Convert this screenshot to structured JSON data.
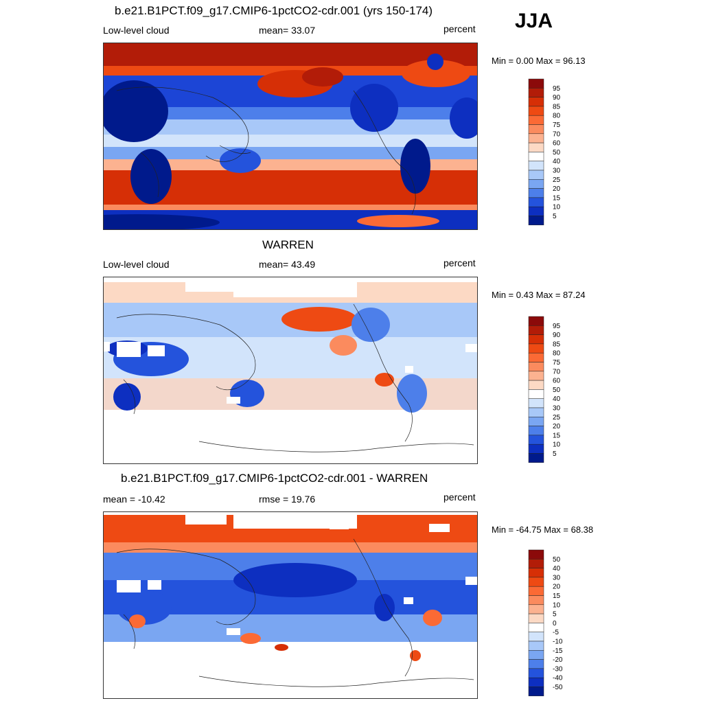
{
  "season": "JJA",
  "panels": [
    {
      "title": "b.e21.B1PCT.f09_g17.CMIP6-1pctCO2-cdr.001 (yrs 150-174)",
      "left_label": "Low-level cloud",
      "center_label": "mean=  33.07",
      "right_label": "percent",
      "minmax": "Min =   0.00 Max =  96.13",
      "colorbar_labels": [
        "95",
        "90",
        "85",
        "80",
        "75",
        "70",
        "60",
        "50",
        "40",
        "30",
        "25",
        "20",
        "15",
        "10",
        "5"
      ],
      "colorbar_colors": [
        "#8b0a0a",
        "#b21c08",
        "#d62f06",
        "#ee4a13",
        "#fb6a35",
        "#fb8b5e",
        "#fcb290",
        "#fcd9c4",
        "#ffffff",
        "#d2e4fb",
        "#a8c8f8",
        "#7aa6f2",
        "#4d7fea",
        "#2453dc",
        "#0d2fc0",
        "#001a8c"
      ]
    },
    {
      "title": "WARREN",
      "left_label": "Low-level cloud",
      "center_label": "mean=  43.49",
      "right_label": "percent",
      "minmax": "Min =   0.43 Max =  87.24",
      "colorbar_labels": [
        "95",
        "90",
        "85",
        "80",
        "75",
        "70",
        "60",
        "50",
        "40",
        "30",
        "25",
        "20",
        "15",
        "10",
        "5"
      ],
      "colorbar_colors": [
        "#8b0a0a",
        "#b21c08",
        "#d62f06",
        "#ee4a13",
        "#fb6a35",
        "#fb8b5e",
        "#fcb290",
        "#fcd9c4",
        "#ffffff",
        "#d2e4fb",
        "#a8c8f8",
        "#7aa6f2",
        "#4d7fea",
        "#2453dc",
        "#0d2fc0",
        "#001a8c"
      ]
    },
    {
      "title": "b.e21.B1PCT.f09_g17.CMIP6-1pctCO2-cdr.001 - WARREN",
      "left_label": "mean = -10.42",
      "center_label": "rmse =  19.76",
      "right_label": "percent",
      "minmax": "Min = -64.75 Max =  68.38",
      "colorbar_labels": [
        "50",
        "40",
        "30",
        "20",
        "15",
        "10",
        "5",
        "0",
        "-5",
        "-10",
        "-15",
        "-20",
        "-30",
        "-40",
        "-50"
      ],
      "colorbar_colors": [
        "#8b0a0a",
        "#b21c08",
        "#d62f06",
        "#ee4a13",
        "#fb6a35",
        "#fb8b5e",
        "#fcb290",
        "#fcd9c4",
        "#ffffff",
        "#d2e4fb",
        "#a8c8f8",
        "#7aa6f2",
        "#4d7fea",
        "#2453dc",
        "#0d2fc0",
        "#001a8c"
      ]
    }
  ]
}
